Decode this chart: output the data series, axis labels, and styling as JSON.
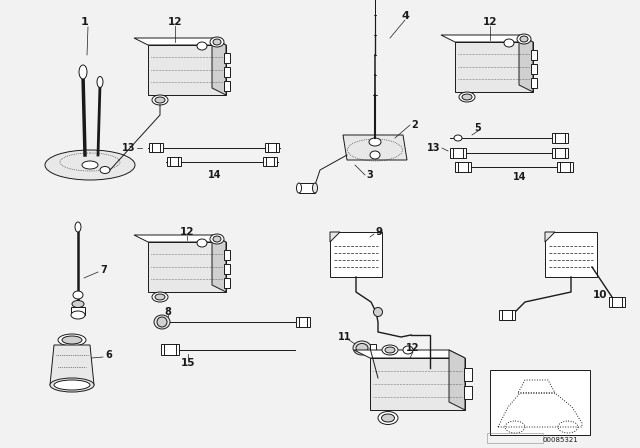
{
  "bg_color": "#f2f2f2",
  "line_color": "#1a1a1a",
  "image_code": "00085321",
  "fig_width": 6.4,
  "fig_height": 4.48,
  "dpi": 100
}
